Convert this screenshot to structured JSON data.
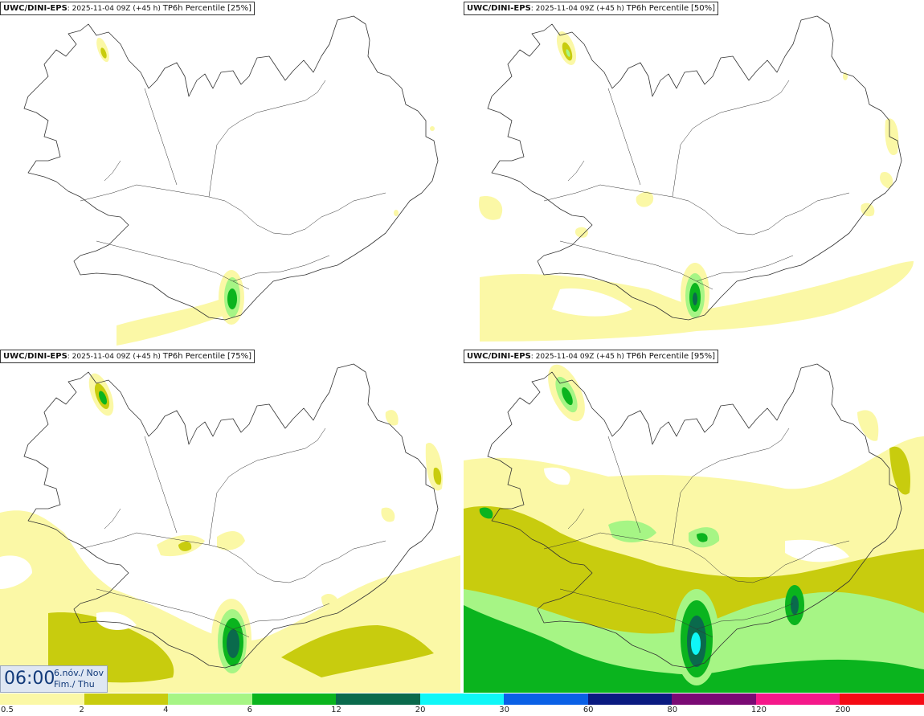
{
  "panels": [
    {
      "model": "UWC/DINI-EPS",
      "run": "2025-11-04 09Z (+45 h)",
      "field": "TP6h Percentile",
      "percentile": "[25%]"
    },
    {
      "model": "UWC/DINI-EPS",
      "run": "2025-11-04 09Z (+45 h)",
      "field": "TP6h Percentile",
      "percentile": "[50%]"
    },
    {
      "model": "UWC/DINI-EPS",
      "run": "2025-11-04 09Z (+45 h)",
      "field": "TP6h Percentile",
      "percentile": "[75%]"
    },
    {
      "model": "UWC/DINI-EPS",
      "run": "2025-11-04 09Z (+45 h)",
      "field": "TP6h Percentile",
      "percentile": "[95%]"
    }
  ],
  "valid_time": {
    "time": "06:00",
    "date_line1": "6.nóv./ Nov",
    "date_line2": "Fim./ Thu"
  },
  "legend": {
    "ticks": [
      "0.5",
      "2",
      "4",
      "6",
      "12",
      "20",
      "30",
      "60",
      "80",
      "120",
      "200"
    ],
    "colors": [
      "#fbf8a6",
      "#c8cc0e",
      "#a6f585",
      "#0ab41e",
      "#0a6a4c",
      "#0ff7f7",
      "#0a60e6",
      "#0a1a80",
      "#7a0a74",
      "#f5188a",
      "#f50a14"
    ]
  },
  "colors": {
    "map_outline": "#333333",
    "background": "#ffffff"
  }
}
